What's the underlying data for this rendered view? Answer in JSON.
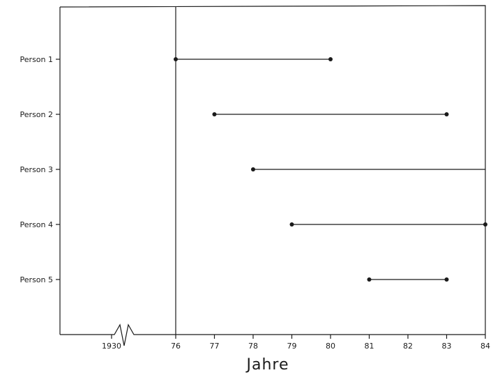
{
  "chart_data": {
    "type": "timeline",
    "xlabel": "Jahre",
    "x_ticks": [
      "1930",
      "76",
      "77",
      "78",
      "79",
      "80",
      "81",
      "82",
      "83",
      "84"
    ],
    "x_axis_break": "1930",
    "x_range": [
      76,
      84
    ],
    "reference_line_x": 76,
    "categories": [
      "Person 1",
      "Person 2",
      "Person 3",
      "Person 4",
      "Person 5"
    ],
    "intervals": [
      {
        "label": "Person 1",
        "start": 76,
        "end": 80,
        "start_marker": true,
        "end_marker": true
      },
      {
        "label": "Person 2",
        "start": 77,
        "end": 83,
        "start_marker": true,
        "end_marker": true
      },
      {
        "label": "Person 3",
        "start": 78,
        "end": 84,
        "start_marker": true,
        "end_marker": false
      },
      {
        "label": "Person 4",
        "start": 79,
        "end": 84,
        "start_marker": true,
        "end_marker": true
      },
      {
        "label": "Person 5",
        "start": 81,
        "end": 83,
        "start_marker": true,
        "end_marker": true
      }
    ]
  }
}
